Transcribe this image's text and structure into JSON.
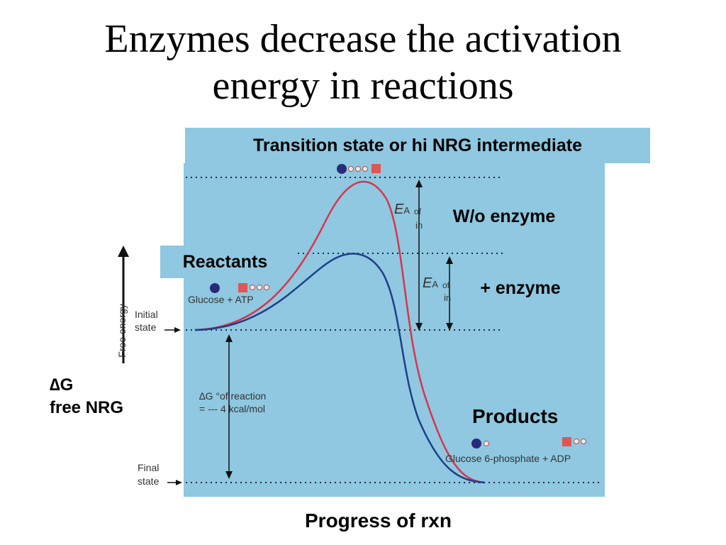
{
  "title": {
    "line1": "Enzymes decrease the activation",
    "line2": "energy in reactions"
  },
  "labels": {
    "transition_state": "Transition state or hi NRG intermediate",
    "without_enzyme": "W/o enzyme",
    "with_enzyme": "+ enzyme",
    "reactants": "Reactants",
    "products": "Products",
    "delta_g_symbol": "∆G",
    "delta_g_text": "free NRG",
    "x_axis": "Progress of rxn"
  },
  "figure": {
    "y_axis": "Free energy",
    "initial_state_line1": "Initial",
    "initial_state_line2": "state",
    "final_state_line1": "Final",
    "final_state_line2": "state",
    "reactants_caption": "Glucose + ATP",
    "products_caption": "Glucose 6-phosphate + ADP",
    "ea_label_1": "E",
    "ea_sub_1": "A",
    "ea_of_1": "of",
    "ea_in_1": "in",
    "ea_label_2": "E",
    "ea_sub_2": "A",
    "ea_of_2": "of",
    "ea_in_2": "in",
    "delta_g_reaction_line1": "∆G °of reaction",
    "delta_g_reaction_line2": "= --- 4 kcal/mol"
  },
  "colors": {
    "panel": "#8fc8e0",
    "uncatalyzed_curve": "#d8344c",
    "catalyzed_curve": "#1f3f8a",
    "dotted_lines": "#1a2a4a"
  }
}
